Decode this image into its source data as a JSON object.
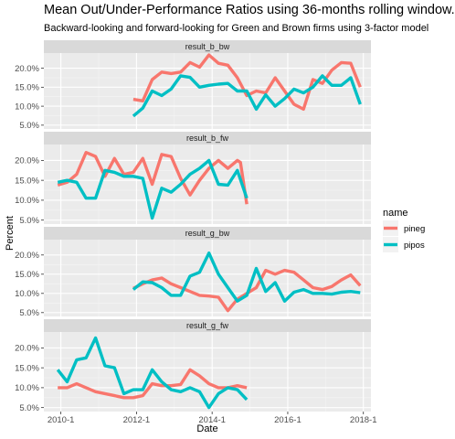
{
  "chart_data": {
    "type": "line",
    "title": "Mean Out/Under-Performance Ratios using 36-months rolling window.",
    "subtitle": "Backward-looking and forward-looking for Green and Brown firms using 3-factor model",
    "xlabel": "Date",
    "ylabel": "Percent",
    "x_ticks": [
      "2010-1",
      "2012-1",
      "2014-1",
      "2016-1",
      "2018-1"
    ],
    "y_ticks": [
      "5.0%",
      "10.0%",
      "15.0%",
      "20.0%"
    ],
    "ylim": [
      4.0,
      24.0
    ],
    "legend": {
      "title": "name",
      "position": "right",
      "entries": [
        "pineg",
        "pipos"
      ]
    },
    "colors": {
      "pineg": "#F8766D",
      "pipos": "#00BFC4"
    },
    "panels": [
      {
        "name": "result_b_bw",
        "series": [
          {
            "name": "pineg",
            "points": [
              [
                "2011-12",
                11.8
              ],
              [
                "2012-3",
                11.4
              ],
              [
                "2012-6",
                17.0
              ],
              [
                "2012-9",
                19.0
              ],
              [
                "2012-12",
                18.6
              ],
              [
                "2013-3",
                19.0
              ],
              [
                "2013-6",
                21.5
              ],
              [
                "2013-9",
                20.3
              ],
              [
                "2013-12",
                23.5
              ],
              [
                "2014-3",
                21.3
              ],
              [
                "2014-6",
                20.8
              ],
              [
                "2014-9",
                17.5
              ],
              [
                "2014-12",
                12.8
              ],
              [
                "2015-3",
                14.0
              ],
              [
                "2015-6",
                13.5
              ],
              [
                "2015-9",
                17.5
              ],
              [
                "2015-12",
                14.0
              ],
              [
                "2016-3",
                10.5
              ],
              [
                "2016-6",
                9.2
              ],
              [
                "2016-9",
                17.0
              ],
              [
                "2016-12",
                16.0
              ],
              [
                "2017-3",
                19.5
              ],
              [
                "2017-6",
                21.5
              ],
              [
                "2017-9",
                21.3
              ],
              [
                "2017-12",
                15.0
              ]
            ]
          },
          {
            "name": "pipos",
            "points": [
              [
                "2011-12",
                7.4
              ],
              [
                "2012-3",
                9.5
              ],
              [
                "2012-6",
                14.0
              ],
              [
                "2012-9",
                12.8
              ],
              [
                "2012-12",
                14.5
              ],
              [
                "2013-3",
                18.0
              ],
              [
                "2013-6",
                17.6
              ],
              [
                "2013-9",
                15.0
              ],
              [
                "2013-12",
                15.5
              ],
              [
                "2014-3",
                15.8
              ],
              [
                "2014-6",
                16.0
              ],
              [
                "2014-9",
                14.0
              ],
              [
                "2014-12",
                14.0
              ],
              [
                "2015-3",
                9.2
              ],
              [
                "2015-6",
                13.0
              ],
              [
                "2015-9",
                10.0
              ],
              [
                "2015-12",
                12.0
              ],
              [
                "2016-3",
                14.5
              ],
              [
                "2016-6",
                13.5
              ],
              [
                "2016-9",
                15.0
              ],
              [
                "2016-12",
                18.0
              ],
              [
                "2017-3",
                15.5
              ],
              [
                "2017-6",
                15.5
              ],
              [
                "2017-9",
                17.5
              ],
              [
                "2017-12",
                10.5
              ]
            ]
          }
        ]
      },
      {
        "name": "result_b_fw",
        "series": [
          {
            "name": "pineg",
            "points": [
              [
                "2009-12",
                13.8
              ],
              [
                "2010-3",
                14.5
              ],
              [
                "2010-6",
                16.5
              ],
              [
                "2010-9",
                22.0
              ],
              [
                "2010-12",
                21.0
              ],
              [
                "2011-3",
                16.0
              ],
              [
                "2011-6",
                20.5
              ],
              [
                "2011-9",
                16.5
              ],
              [
                "2011-12",
                17.0
              ],
              [
                "2012-3",
                20.5
              ],
              [
                "2012-6",
                14.0
              ],
              [
                "2012-9",
                21.5
              ],
              [
                "2012-12",
                21.0
              ],
              [
                "2013-3",
                15.5
              ],
              [
                "2013-6",
                11.3
              ],
              [
                "2013-9",
                15.0
              ],
              [
                "2013-12",
                18.0
              ],
              [
                "2014-3",
                20.0
              ],
              [
                "2014-6",
                18.0
              ],
              [
                "2014-9",
                20.0
              ],
              [
                "2014-10",
                19.5
              ],
              [
                "2014-12",
                9.0
              ]
            ]
          },
          {
            "name": "pipos",
            "points": [
              [
                "2009-12",
                14.5
              ],
              [
                "2010-3",
                15.0
              ],
              [
                "2010-6",
                14.5
              ],
              [
                "2010-9",
                10.5
              ],
              [
                "2010-12",
                10.5
              ],
              [
                "2011-3",
                17.5
              ],
              [
                "2011-6",
                17.0
              ],
              [
                "2011-9",
                16.0
              ],
              [
                "2011-12",
                16.0
              ],
              [
                "2012-3",
                15.5
              ],
              [
                "2012-6",
                5.5
              ],
              [
                "2012-9",
                13.0
              ],
              [
                "2012-12",
                12.0
              ],
              [
                "2013-3",
                14.0
              ],
              [
                "2013-6",
                16.5
              ],
              [
                "2013-9",
                18.0
              ],
              [
                "2013-12",
                20.0
              ],
              [
                "2014-3",
                14.0
              ],
              [
                "2014-6",
                13.8
              ],
              [
                "2014-9",
                17.5
              ],
              [
                "2014-12",
                10.5
              ]
            ]
          }
        ]
      },
      {
        "name": "result_g_bw",
        "series": [
          {
            "name": "pineg",
            "points": [
              [
                "2011-12",
                11.3
              ],
              [
                "2012-3",
                12.5
              ],
              [
                "2012-6",
                13.5
              ],
              [
                "2012-9",
                14.0
              ],
              [
                "2012-12",
                12.5
              ],
              [
                "2013-3",
                11.5
              ],
              [
                "2013-6",
                10.5
              ],
              [
                "2013-9",
                9.5
              ],
              [
                "2013-12",
                9.3
              ],
              [
                "2014-3",
                9.0
              ],
              [
                "2014-6",
                5.5
              ],
              [
                "2014-9",
                8.5
              ],
              [
                "2014-12",
                10.0
              ],
              [
                "2015-3",
                11.5
              ],
              [
                "2015-6",
                16.0
              ],
              [
                "2015-9",
                15.0
              ],
              [
                "2015-12",
                16.0
              ],
              [
                "2016-3",
                15.5
              ],
              [
                "2016-6",
                13.5
              ],
              [
                "2016-9",
                11.5
              ],
              [
                "2016-12",
                11.0
              ],
              [
                "2017-3",
                11.8
              ],
              [
                "2017-6",
                13.5
              ],
              [
                "2017-9",
                14.8
              ],
              [
                "2017-12",
                12.0
              ]
            ]
          },
          {
            "name": "pipos",
            "points": [
              [
                "2011-12",
                11.0
              ],
              [
                "2012-3",
                13.0
              ],
              [
                "2012-6",
                12.8
              ],
              [
                "2012-9",
                11.5
              ],
              [
                "2012-12",
                9.5
              ],
              [
                "2013-3",
                9.5
              ],
              [
                "2013-6",
                14.5
              ],
              [
                "2013-9",
                15.5
              ],
              [
                "2013-12",
                20.5
              ],
              [
                "2014-3",
                15.0
              ],
              [
                "2014-6",
                11.5
              ],
              [
                "2014-9",
                8.0
              ],
              [
                "2014-12",
                9.5
              ],
              [
                "2015-3",
                16.5
              ],
              [
                "2015-6",
                10.5
              ],
              [
                "2015-9",
                12.8
              ],
              [
                "2015-12",
                8.0
              ],
              [
                "2016-3",
                10.3
              ],
              [
                "2016-6",
                11.0
              ],
              [
                "2016-9",
                10.0
              ],
              [
                "2016-12",
                10.0
              ],
              [
                "2017-3",
                9.8
              ],
              [
                "2017-6",
                10.3
              ],
              [
                "2017-9",
                10.5
              ],
              [
                "2017-12",
                10.2
              ]
            ]
          }
        ]
      },
      {
        "name": "result_g_fw",
        "series": [
          {
            "name": "pineg",
            "points": [
              [
                "2009-12",
                10.0
              ],
              [
                "2010-3",
                10.0
              ],
              [
                "2010-6",
                11.0
              ],
              [
                "2010-9",
                10.0
              ],
              [
                "2010-12",
                9.0
              ],
              [
                "2011-3",
                8.5
              ],
              [
                "2011-6",
                8.0
              ],
              [
                "2011-9",
                7.5
              ],
              [
                "2011-12",
                7.5
              ],
              [
                "2012-3",
                8.0
              ],
              [
                "2012-6",
                11.0
              ],
              [
                "2012-9",
                10.5
              ],
              [
                "2012-12",
                10.5
              ],
              [
                "2013-3",
                10.8
              ],
              [
                "2013-6",
                14.5
              ],
              [
                "2013-9",
                13.0
              ],
              [
                "2013-12",
                11.0
              ],
              [
                "2014-3",
                10.0
              ],
              [
                "2014-6",
                10.0
              ],
              [
                "2014-9",
                10.5
              ],
              [
                "2014-12",
                10.0
              ]
            ]
          },
          {
            "name": "pipos",
            "points": [
              [
                "2009-12",
                14.5
              ],
              [
                "2010-3",
                11.5
              ],
              [
                "2010-6",
                17.0
              ],
              [
                "2010-9",
                17.5
              ],
              [
                "2010-12",
                22.5
              ],
              [
                "2011-3",
                15.5
              ],
              [
                "2011-6",
                15.0
              ],
              [
                "2011-9",
                8.5
              ],
              [
                "2011-12",
                9.5
              ],
              [
                "2012-3",
                9.5
              ],
              [
                "2012-6",
                14.5
              ],
              [
                "2012-9",
                11.5
              ],
              [
                "2012-12",
                9.5
              ],
              [
                "2013-3",
                9.0
              ],
              [
                "2013-6",
                10.0
              ],
              [
                "2013-9",
                9.0
              ],
              [
                "2013-12",
                5.0
              ],
              [
                "2014-3",
                8.5
              ],
              [
                "2014-6",
                10.0
              ],
              [
                "2014-9",
                9.5
              ],
              [
                "2014-12",
                7.0
              ]
            ]
          }
        ]
      }
    ]
  }
}
